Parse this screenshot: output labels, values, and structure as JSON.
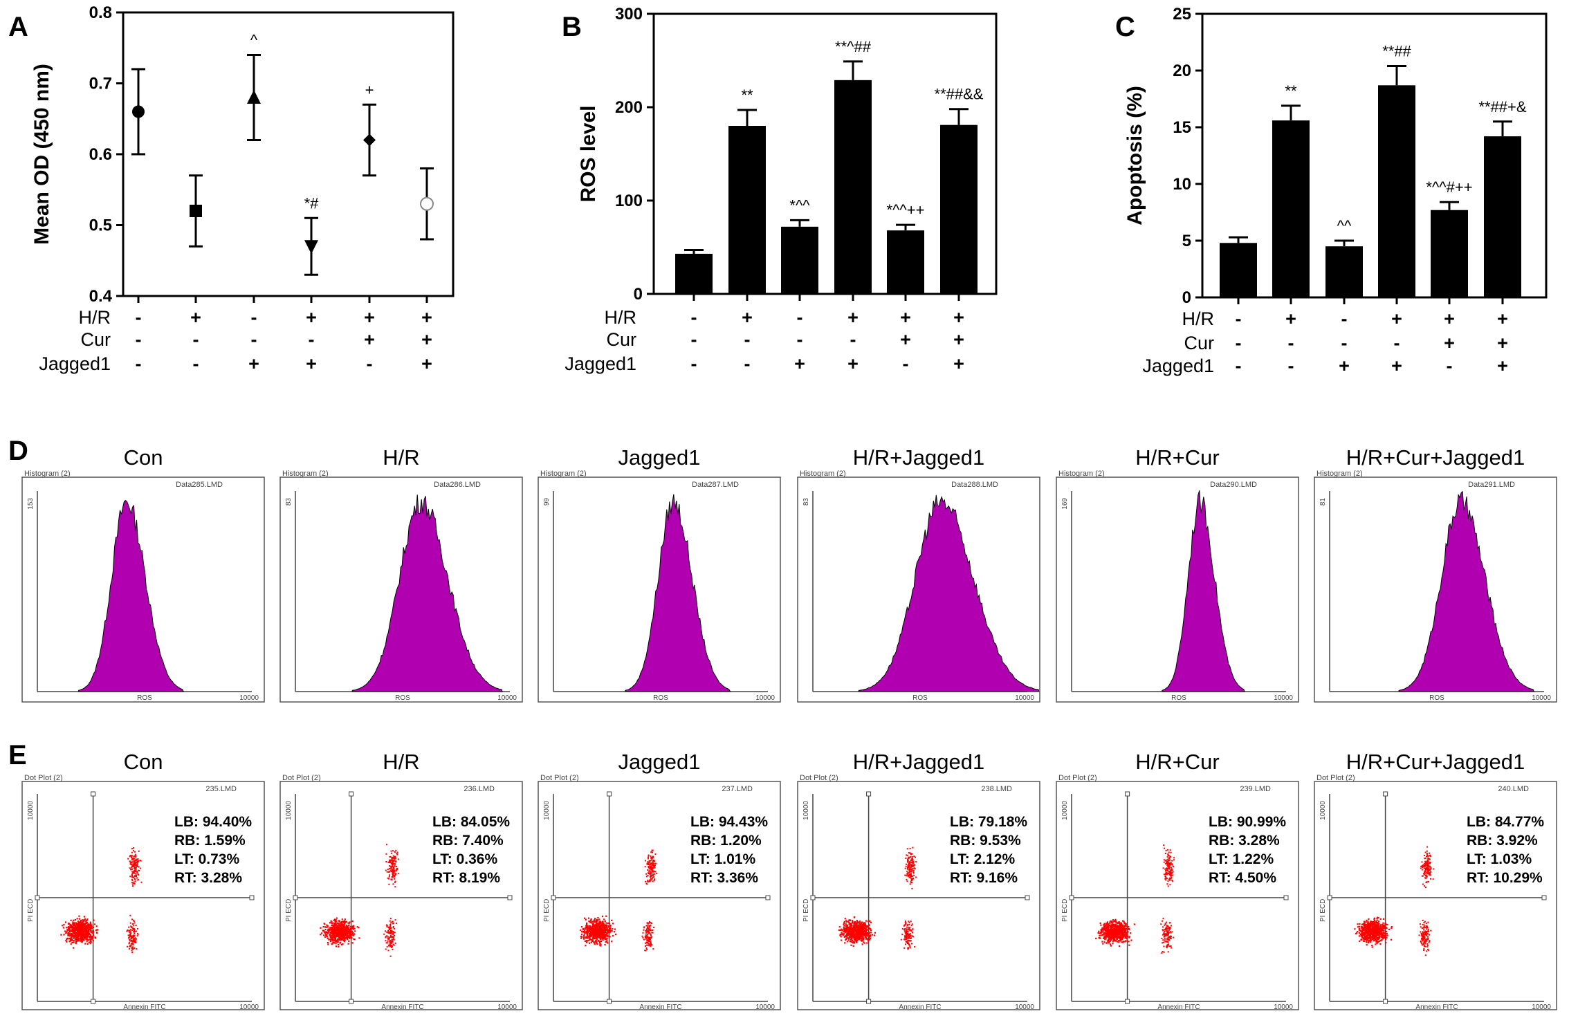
{
  "panels": {
    "A": {
      "letter": "A"
    },
    "B": {
      "letter": "B"
    },
    "C": {
      "letter": "C"
    },
    "D": {
      "letter": "D"
    },
    "E": {
      "letter": "E"
    }
  },
  "conditions": {
    "row_labels": [
      "H/R",
      "Cur",
      "Jagged1"
    ],
    "signs": [
      [
        "-",
        "-",
        "-"
      ],
      [
        "+",
        "-",
        "-"
      ],
      [
        "-",
        "-",
        "+"
      ],
      [
        "+",
        "-",
        "+"
      ],
      [
        "+",
        "+",
        "-"
      ],
      [
        "+",
        "+",
        "+"
      ]
    ]
  },
  "chart_data": [
    {
      "id": "A",
      "type": "scatter",
      "ylabel": "Mean OD (450 nm)",
      "ylim": [
        0.4,
        0.8
      ],
      "yticks": [
        "0.4",
        "0.5",
        "0.6",
        "0.7",
        "0.8"
      ],
      "values": [
        0.66,
        0.52,
        0.68,
        0.47,
        0.62,
        0.53
      ],
      "errors": [
        0.06,
        0.05,
        0.06,
        0.04,
        0.05,
        0.05
      ],
      "markers": [
        "circle",
        "square",
        "triangle-up",
        "triangle-down",
        "diamond",
        "circle-open"
      ],
      "annotations": [
        "",
        "",
        "^",
        "*#",
        "+",
        ""
      ]
    },
    {
      "id": "B",
      "type": "bar",
      "ylabel": "ROS level",
      "ylim": [
        0,
        300
      ],
      "yticks": [
        "0",
        "100",
        "200",
        "300"
      ],
      "values": [
        43,
        180,
        72,
        229,
        68,
        181
      ],
      "errors": [
        4,
        17,
        7,
        20,
        6,
        17
      ],
      "annotations": [
        "",
        "**",
        "*^^",
        "**^##",
        "*^^++",
        "**##&&"
      ]
    },
    {
      "id": "C",
      "type": "bar",
      "ylabel": "Apoptosis (%)",
      "ylim": [
        0,
        25
      ],
      "yticks": [
        "0",
        "5",
        "10",
        "15",
        "20",
        "25"
      ],
      "values": [
        4.8,
        15.6,
        4.5,
        18.7,
        7.7,
        14.2
      ],
      "errors": [
        0.5,
        1.3,
        0.5,
        1.7,
        0.7,
        1.3
      ],
      "annotations": [
        "",
        "**",
        "^^",
        "**##",
        "*^^#++",
        "**##+&"
      ]
    }
  ],
  "histograms": {
    "titles": [
      "Con",
      "H/R",
      "Jagged1",
      "H/R+Jagged1",
      "H/R+Cur",
      "H/R+Cur+Jagged1"
    ],
    "plot_label": "Histogram (2)",
    "files": [
      "Data285.LMD",
      "Data286.LMD",
      "Data287.LMD",
      "Data288.LMD",
      "Data290.LMD",
      "Data291.LMD"
    ],
    "ymax": [
      "153",
      "83",
      "99",
      "83",
      "169",
      "81"
    ],
    "xlabel": "ROS",
    "xmax": "10000",
    "fill_color": "#b000b0",
    "peaks": [
      0.32,
      0.45,
      0.43,
      0.46,
      0.46,
      0.47
    ],
    "widths": [
      0.07,
      0.1,
      0.07,
      0.12,
      0.055,
      0.09
    ]
  },
  "dotplots": {
    "titles": [
      "Con",
      "H/R",
      "Jagged1",
      "H/R+Jagged1",
      "H/R+Cur",
      "H/R+Cur+Jagged1"
    ],
    "plot_label": "Dot Plot (2)",
    "files": [
      "235.LMD",
      "236.LMD",
      "237.LMD",
      "238.LMD",
      "239.LMD",
      "240.LMD"
    ],
    "xlabel": "Annexin FITC",
    "ylabel": "PI ECD",
    "axis_max": "10000",
    "dot_color": "#ff0000",
    "stats": [
      [
        "LB: 94.40%",
        "RB: 1.59%",
        "LT: 0.73%",
        "RT: 3.28%"
      ],
      [
        "LB: 84.05%",
        "RB: 7.40%",
        "LT: 0.36%",
        "RT: 8.19%"
      ],
      [
        "LB: 94.43%",
        "RB: 1.20%",
        "LT: 1.01%",
        "RT: 3.36%"
      ],
      [
        "LB: 79.18%",
        "RB: 9.53%",
        "LT: 2.12%",
        "RT: 9.16%"
      ],
      [
        "LB: 90.99%",
        "RB: 3.28%",
        "LT: 1.22%",
        "RT: 4.50%"
      ],
      [
        "LB: 84.77%",
        "RB: 3.92%",
        "LT: 1.03%",
        "RT: 10.29%"
      ]
    ]
  }
}
